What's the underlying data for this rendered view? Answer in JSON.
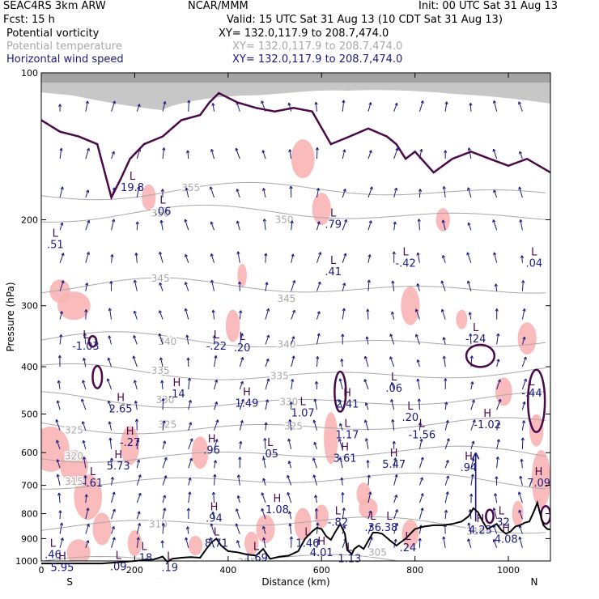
{
  "header": {
    "model": "SEAC4RS  3km ARW",
    "org": "NCAR/MMM",
    "init": "Init: 00 UTC Sat 31 Aug 13",
    "fcst": "Fcst:    15 h",
    "valid": "Valid: 15 UTC Sat 31 Aug 13 (10 CDT Sat 31 Aug 13)",
    "fields": [
      {
        "name": "Potential vorticity",
        "xy": "XY= 132.0,117.9 to 208.7,474.0",
        "color": "#000000"
      },
      {
        "name": "Potential temperature",
        "xy": "XY= 132.0,117.9 to 208.7,474.0",
        "color": "#a9a9a9"
      },
      {
        "name": "Horizontal wind speed",
        "xy": "XY= 132.0,117.9 to 208.7,474.0",
        "color": "#1a1a80"
      }
    ]
  },
  "chart_data": {
    "type": "cross-section",
    "xlabel": "Distance (km)",
    "ylabel": "Pressure (hPa)",
    "xlim": [
      0,
      1090
    ],
    "ylim": [
      1000,
      100
    ],
    "y_scale": "log",
    "x_ticks": [
      "0",
      "200",
      "400",
      "600",
      "800",
      "1000"
    ],
    "y_ticks": [
      "100",
      "200",
      "300",
      "400",
      "500",
      "600",
      "700",
      "800",
      "900",
      "1000"
    ],
    "left_end_label": "S",
    "right_end_label": "N",
    "terrain_color": "#000000",
    "pv_contour_color": "#4a0a4a",
    "shading_color": "#f8b4b4",
    "theta_contours": [
      {
        "label": "355",
        "x": 320,
        "p": 172
      },
      {
        "label": "350",
        "x": 255,
        "p": 194
      },
      {
        "label": "350",
        "x": 520,
        "p": 200
      },
      {
        "label": "345",
        "x": 255,
        "p": 264
      },
      {
        "label": "345",
        "x": 525,
        "p": 290
      },
      {
        "label": "340",
        "x": 270,
        "p": 355
      },
      {
        "label": "340",
        "x": 525,
        "p": 360
      },
      {
        "label": "335",
        "x": 255,
        "p": 408
      },
      {
        "label": "335",
        "x": 510,
        "p": 418
      },
      {
        "label": "330",
        "x": 265,
        "p": 468
      },
      {
        "label": "330",
        "x": 530,
        "p": 472
      },
      {
        "label": "325",
        "x": 70,
        "p": 540
      },
      {
        "label": "325",
        "x": 270,
        "p": 525
      },
      {
        "label": "325",
        "x": 540,
        "p": 530
      },
      {
        "label": "320",
        "x": 70,
        "p": 610
      },
      {
        "label": "315",
        "x": 70,
        "p": 688
      },
      {
        "label": "310",
        "x": 250,
        "p": 840
      },
      {
        "label": "305",
        "x": 440,
        "p": 1005
      },
      {
        "label": "305",
        "x": 720,
        "p": 960
      },
      {
        "label": "310",
        "x": 930,
        "p": 870
      }
    ],
    "extrema": [
      {
        "type": "L",
        "value": ".51",
        "x": 30,
        "p": 220
      },
      {
        "type": "L",
        "value": "-1.03",
        "x": 95,
        "p": 355
      },
      {
        "type": "H",
        "value": "2.65",
        "x": 170,
        "p": 478
      },
      {
        "type": "H",
        "value": "-.27",
        "x": 190,
        "p": 560
      },
      {
        "type": "H",
        "value": "5.73",
        "x": 165,
        "p": 625
      },
      {
        "type": "L",
        "value": "-.61",
        "x": 110,
        "p": 678
      },
      {
        "type": "L",
        "value": "19.8",
        "x": 195,
        "p": 168
      },
      {
        "type": "L",
        "value": ".06",
        "x": 260,
        "p": 188
      },
      {
        "type": "H",
        "value": ".14",
        "x": 290,
        "p": 445
      },
      {
        "type": "L",
        "value": "-.22",
        "x": 375,
        "p": 355
      },
      {
        "type": "L",
        "value": ".20",
        "x": 430,
        "p": 358
      },
      {
        "type": "H",
        "value": "1.49",
        "x": 440,
        "p": 465
      },
      {
        "type": "H",
        "value": ".96",
        "x": 365,
        "p": 580
      },
      {
        "type": "L",
        "value": ".05",
        "x": 490,
        "p": 590
      },
      {
        "type": "L",
        "value": ".79",
        "x": 625,
        "p": 200
      },
      {
        "type": "L",
        "value": ".41",
        "x": 625,
        "p": 250
      },
      {
        "type": "H",
        "value": "2.41",
        "x": 655,
        "p": 467
      },
      {
        "type": "L",
        "value": "1.07",
        "x": 560,
        "p": 487
      },
      {
        "type": "L",
        "value": "1.17",
        "x": 655,
        "p": 540
      },
      {
        "type": "H",
        "value": "3.61",
        "x": 650,
        "p": 603
      },
      {
        "type": "L",
        "value": "-.42",
        "x": 780,
        "p": 240
      },
      {
        "type": "L",
        "value": ".06",
        "x": 755,
        "p": 433
      },
      {
        "type": "L",
        "value": ".20",
        "x": 790,
        "p": 497
      },
      {
        "type": "L",
        "value": "-1.56",
        "x": 815,
        "p": 540
      },
      {
        "type": "H",
        "value": "5.47",
        "x": 755,
        "p": 620
      },
      {
        "type": "L",
        "value": "-.24",
        "x": 930,
        "p": 343
      },
      {
        "type": "L",
        "value": ".04",
        "x": 1055,
        "p": 240
      },
      {
        "type": "L",
        "value": "-.44",
        "x": 1050,
        "p": 443
      },
      {
        "type": "H",
        "value": "-1.02",
        "x": 955,
        "p": 515
      },
      {
        "type": "H",
        "value": ".94",
        "x": 915,
        "p": 630
      },
      {
        "type": "H",
        "value": "7.09",
        "x": 1065,
        "p": 678
      },
      {
        "type": "H",
        "value": ".94",
        "x": 370,
        "p": 800
      },
      {
        "type": "H",
        "value": "1.08",
        "x": 505,
        "p": 768
      },
      {
        "type": "L",
        "value": "-.82",
        "x": 635,
        "p": 815
      },
      {
        "type": "L",
        "value": ".36",
        "x": 710,
        "p": 835
      },
      {
        "type": "L",
        "value": ".38",
        "x": 745,
        "p": 835
      },
      {
        "type": "L",
        "value": "8.71",
        "x": 375,
        "p": 900
      },
      {
        "type": "L",
        "value": "1.46",
        "x": 570,
        "p": 900
      },
      {
        "type": "H",
        "value": "4.01",
        "x": 600,
        "p": 940
      },
      {
        "type": "L",
        "value": ".24",
        "x": 785,
        "p": 920
      },
      {
        "type": "L",
        "value": ".32",
        "x": 985,
        "p": 815
      },
      {
        "type": "H",
        "value": "4.23",
        "x": 940,
        "p": 845
      },
      {
        "type": "H",
        "value": "4.08",
        "x": 995,
        "p": 883
      },
      {
        "type": "L",
        "value": ".46",
        "x": 25,
        "p": 950
      },
      {
        "type": "H",
        "value": "5.95",
        "x": 45,
        "p": 1010
      },
      {
        "type": "L",
        "value": ".18",
        "x": 220,
        "p": 965
      },
      {
        "type": "L",
        "value": ".09",
        "x": 165,
        "p": 1005
      },
      {
        "type": "L",
        "value": ".19",
        "x": 275,
        "p": 1010
      },
      {
        "type": "L",
        "value": "1.69",
        "x": 460,
        "p": 965
      },
      {
        "type": "L",
        "value": "1.13",
        "x": 660,
        "p": 968
      }
    ],
    "terrain": {
      "x": [
        0,
        130,
        175,
        200,
        220,
        240,
        260,
        270,
        280,
        300,
        320,
        340,
        355,
        365,
        375,
        385,
        400,
        420,
        440,
        460,
        475,
        490,
        510,
        530,
        550,
        565,
        580,
        590,
        600,
        610,
        620,
        630,
        640,
        650,
        655,
        665,
        670,
        680,
        690,
        700,
        710,
        720,
        730,
        745,
        760,
        780,
        800,
        820,
        840,
        860,
        880,
        900,
        915,
        925,
        935,
        945,
        955,
        965,
        975,
        985,
        995,
        1005,
        1015,
        1025,
        1035,
        1045,
        1055,
        1062,
        1068,
        1075,
        1083,
        1090
      ],
      "p": [
        1012,
        1012,
        1005,
        1000,
        995,
        993,
        980,
        1005,
        990,
        985,
        982,
        985,
        940,
        915,
        900,
        930,
        955,
        960,
        970,
        975,
        945,
        990,
        980,
        975,
        955,
        900,
        870,
        855,
        860,
        890,
        905,
        870,
        840,
        880,
        950,
        968,
        945,
        930,
        945,
        910,
        875,
        875,
        880,
        905,
        930,
        900,
        860,
        850,
        845,
        845,
        840,
        830,
        810,
        780,
        795,
        830,
        860,
        850,
        840,
        865,
        880,
        870,
        850,
        845,
        835,
        830,
        790,
        760,
        800,
        845,
        860,
        862
      ]
    },
    "tropopause_pv": {
      "x": [
        0,
        40,
        80,
        120,
        150,
        170,
        190,
        220,
        260,
        300,
        340,
        360,
        380,
        420,
        460,
        500,
        540,
        580,
        620,
        660,
        700,
        740,
        760,
        780,
        800,
        840,
        880,
        920,
        960,
        1000,
        1040,
        1090
      ],
      "p": [
        125,
        132,
        135,
        140,
        180,
        165,
        150,
        140,
        135,
        125,
        122,
        115,
        110,
        115,
        118,
        120,
        118,
        120,
        140,
        135,
        130,
        135,
        140,
        150,
        145,
        160,
        150,
        145,
        150,
        155,
        150,
        160
      ]
    }
  }
}
